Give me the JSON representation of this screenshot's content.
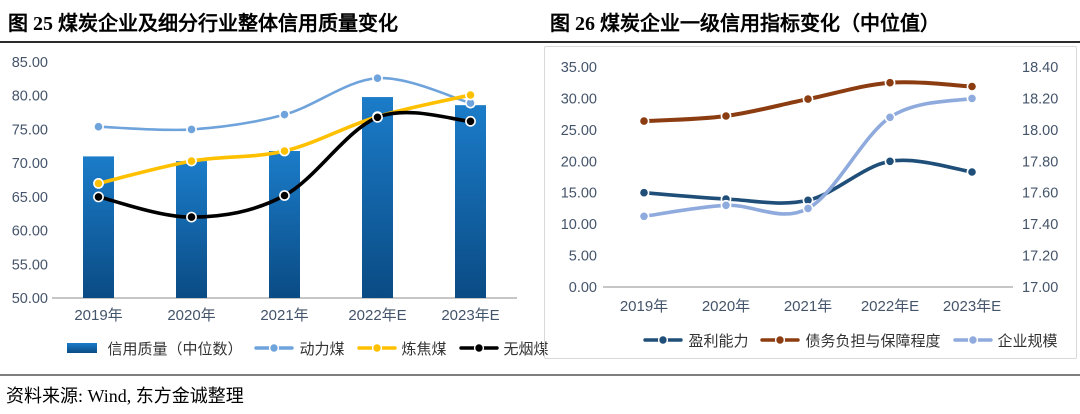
{
  "source": "资料来源: Wind, 东方金诚整理",
  "colors": {
    "axis_label": "#44546A",
    "axis_line": "#c6c6c6",
    "frame_border": "#d9d9d9",
    "title_rule": "#2b2b2b",
    "footer_rule": "#7f7f7f",
    "legend_text": "#333333"
  },
  "chart_data": [
    {
      "type": "bar+line combo",
      "title": "图 25 煤炭企业及细分行业整体信用质量变化",
      "categories": [
        "2019年",
        "2020年",
        "2021年",
        "2022年E",
        "2023年E"
      ],
      "y_axis": {
        "min": 50,
        "max": 85,
        "step": 5,
        "tick_labels": [
          "85.00",
          "80.00",
          "75.00",
          "70.00",
          "65.00",
          "60.00",
          "55.00",
          "50.00"
        ]
      },
      "grid": false,
      "legend_position": "bottom",
      "series": [
        {
          "name": "信用质量（中位数）",
          "type": "bar",
          "values": [
            71.0,
            70.3,
            71.8,
            79.8,
            78.6
          ],
          "color_top": "#1b7cc9",
          "color_bottom": "#0a4b84"
        },
        {
          "name": "动力煤",
          "type": "line",
          "smooth": true,
          "values": [
            75.4,
            75.0,
            77.2,
            82.6,
            78.9
          ],
          "color": "#6fa3dc",
          "stroke_width": 2.6
        },
        {
          "name": "炼焦煤",
          "type": "line",
          "smooth": true,
          "values": [
            67.0,
            70.3,
            71.8,
            76.9,
            80.1
          ],
          "color": "#ffc000",
          "stroke_width": 3.6
        },
        {
          "name": "无烟煤",
          "type": "line",
          "smooth": true,
          "values": [
            65.0,
            62.0,
            65.2,
            76.8,
            76.2
          ],
          "color": "#000000",
          "stroke_width": 3.6
        }
      ]
    },
    {
      "type": "line",
      "title": "图 26 煤炭企业一级信用指标变化（中位值）",
      "categories": [
        "2019年",
        "2020年",
        "2021年",
        "2022年E",
        "2023年E"
      ],
      "y_axis": {
        "min": 0,
        "max": 35,
        "step": 5,
        "tick_labels": [
          "35.00",
          "30.00",
          "25.00",
          "20.00",
          "15.00",
          "10.00",
          "5.00",
          "0.00"
        ]
      },
      "y2_axis": {
        "min": 17.0,
        "max": 18.4,
        "step": 0.2,
        "tick_labels": [
          "18.40",
          "18.20",
          "18.00",
          "17.80",
          "17.60",
          "17.40",
          "17.20",
          "17.00"
        ]
      },
      "grid": false,
      "legend_position": "bottom",
      "series": [
        {
          "name": "盈利能力",
          "type": "line",
          "axis": "left",
          "smooth": true,
          "values": [
            15.0,
            14.0,
            13.8,
            20.0,
            18.3
          ],
          "color": "#1f4e79",
          "stroke_width": 3.6
        },
        {
          "name": "债务负担与保障程度",
          "type": "line",
          "axis": "left",
          "smooth": true,
          "values": [
            26.4,
            27.2,
            29.9,
            32.5,
            31.9
          ],
          "color": "#8b3c10",
          "stroke_width": 4
        },
        {
          "name": "企业规模",
          "type": "line",
          "axis": "right",
          "smooth": true,
          "values": [
            17.45,
            17.52,
            17.5,
            18.08,
            18.2
          ],
          "color": "#8faadc",
          "stroke_width": 3.6
        }
      ]
    }
  ]
}
